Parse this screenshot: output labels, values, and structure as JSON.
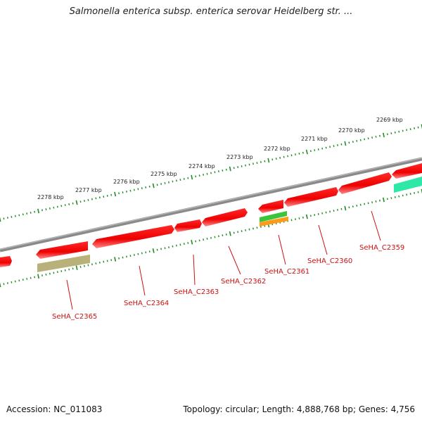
{
  "title": "Salmonella enterica subsp. enterica serovar Heidelberg str. ...",
  "footer": {
    "accession": "Accession: NC_011083",
    "topology": "Topology: circular; Length: 4,888,768 bp; Genes: 4,756"
  },
  "colors": {
    "cds_red": "#ff1a1a",
    "cds_red_light": "#ff8080",
    "backbone": "#888888",
    "tick_green": "#228b22",
    "label_red": "#cc1111",
    "gene_green": "#3cc43c",
    "gene_orange": "#ff9a1a",
    "gene_olive": "#b8b27a",
    "gene_teal": "#2ee8a8"
  },
  "scale_labels": [
    "2278 kbp",
    "2277 kbp",
    "2276 kbp",
    "2275 kbp",
    "2274 kbp",
    "2273 kbp",
    "2272 kbp",
    "2271 kbp",
    "2270 kbp",
    "2269 kbp"
  ],
  "gene_labels": [
    "SeHA_C2365",
    "SeHA_C2364",
    "SeHA_C2363",
    "SeHA_C2362",
    "SeHA_C2361",
    "SeHA_C2360",
    "SeHA_C2359"
  ]
}
